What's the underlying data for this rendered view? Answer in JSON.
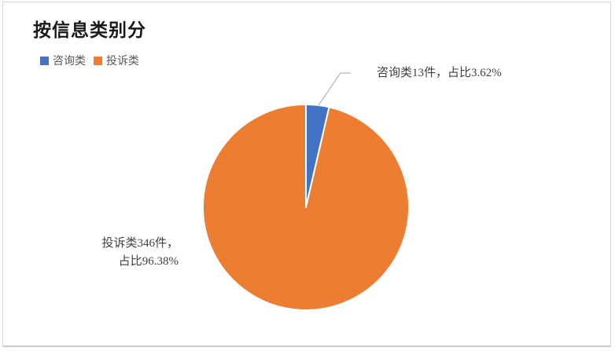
{
  "chart": {
    "title": "按信息类别分",
    "labels": {
      "consult": "咨询类13件，占比3.62%",
      "complaint_line1": "投诉类346件，",
      "complaint_line2": "占比96.38%"
    }
  },
  "chart_data": {
    "type": "pie",
    "title": "按信息类别分",
    "categories": [
      "咨询类",
      "投诉类"
    ],
    "values": [
      13,
      346
    ],
    "percentages": [
      3.62,
      96.38
    ],
    "unit": "件",
    "colors": [
      "#4472C4",
      "#ED7D31"
    ],
    "slice_border_color": "#FFFFFF",
    "leader_line_color": "#A6A6A6",
    "start_angle_deg": 0,
    "direction": "clockwise",
    "legend_position": "top-left",
    "annotations": [
      "咨询类13件，占比3.62%",
      "投诉类346件，占比96.38%"
    ]
  }
}
